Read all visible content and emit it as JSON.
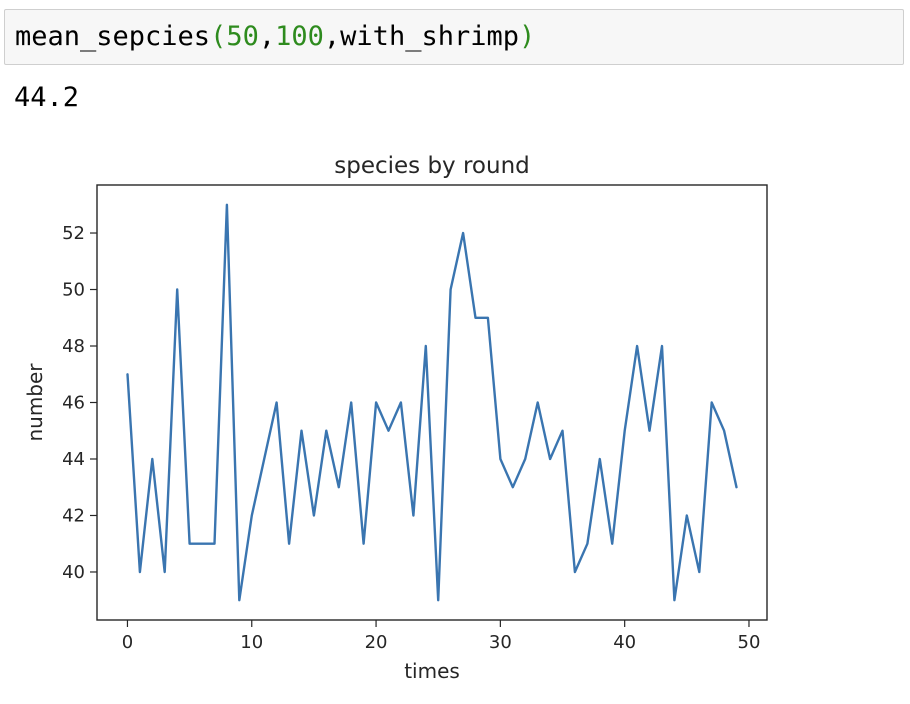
{
  "cell": {
    "function_name": "mean_sepcies",
    "arg1": "50",
    "arg2": "100",
    "arg3": "with_shrimp"
  },
  "output": {
    "value": "44.2"
  },
  "chart_data": {
    "type": "line",
    "title": "species by round",
    "xlabel": "times",
    "ylabel": "number",
    "xlim": [
      -2.45,
      51.45
    ],
    "ylim": [
      38.3,
      53.7
    ],
    "xticks": [
      0,
      10,
      20,
      30,
      40,
      50
    ],
    "yticks": [
      40,
      42,
      44,
      46,
      48,
      50,
      52
    ],
    "grid": false,
    "series": [
      {
        "color": "#3a75b0",
        "x": [
          0,
          1,
          2,
          3,
          4,
          5,
          6,
          7,
          8,
          9,
          10,
          11,
          12,
          13,
          14,
          15,
          16,
          17,
          18,
          19,
          20,
          21,
          22,
          23,
          24,
          25,
          26,
          27,
          28,
          29,
          30,
          31,
          32,
          33,
          34,
          35,
          36,
          37,
          38,
          39,
          40,
          41,
          42,
          43,
          44,
          45,
          46,
          47,
          48,
          49
        ],
        "values": [
          47,
          40,
          44,
          40,
          50,
          41,
          41,
          41,
          53,
          39,
          42,
          44,
          46,
          41,
          45,
          42,
          45,
          43,
          46,
          41,
          46,
          45,
          46,
          42,
          48,
          39,
          50,
          52,
          49,
          49,
          44,
          43,
          44,
          46,
          44,
          45,
          40,
          41,
          44,
          41,
          45,
          48,
          45,
          48,
          39,
          42,
          40,
          46,
          45,
          43
        ]
      }
    ]
  }
}
